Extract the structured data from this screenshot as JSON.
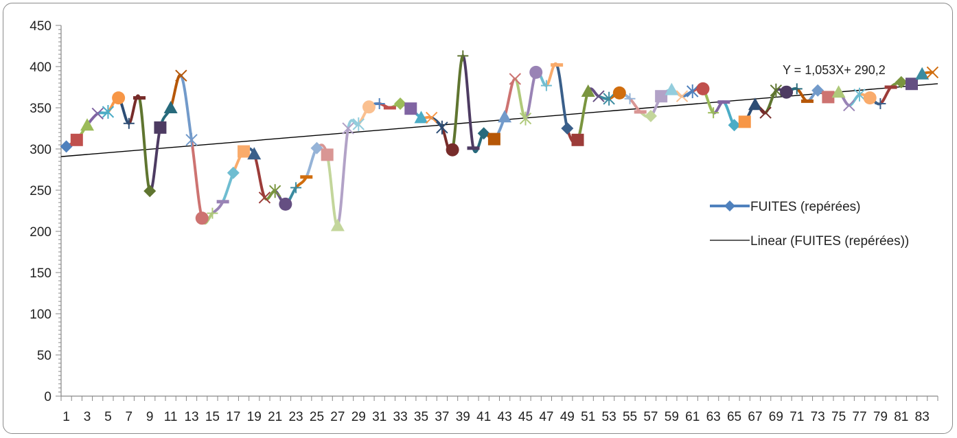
{
  "chart_data": {
    "type": "line",
    "x": [
      1,
      2,
      3,
      4,
      5,
      6,
      7,
      8,
      9,
      10,
      11,
      12,
      13,
      14,
      15,
      16,
      17,
      18,
      19,
      20,
      21,
      22,
      23,
      24,
      25,
      26,
      27,
      28,
      29,
      30,
      31,
      32,
      33,
      34,
      35,
      36,
      37,
      38,
      39,
      40,
      41,
      42,
      43,
      44,
      45,
      46,
      47,
      48,
      49,
      50,
      51,
      52,
      53,
      54,
      55,
      56,
      57,
      58,
      59,
      60,
      61,
      62,
      63,
      64,
      65,
      66,
      67,
      68,
      69,
      70,
      71,
      72,
      73,
      74,
      75,
      76,
      77,
      78,
      79,
      80,
      81,
      82,
      83,
      84
    ],
    "x_tick_labels": [
      "1",
      "3",
      "5",
      "7",
      "9",
      "11",
      "13",
      "15",
      "17",
      "19",
      "21",
      "23",
      "25",
      "27",
      "29",
      "31",
      "33",
      "35",
      "37",
      "39",
      "41",
      "43",
      "45",
      "47",
      "49",
      "51",
      "53",
      "55",
      "57",
      "59",
      "61",
      "63",
      "65",
      "67",
      "69",
      "71",
      "73",
      "75",
      "77",
      "79",
      "81",
      "83"
    ],
    "series": [
      {
        "name": "FUITES (repérées)",
        "values": [
          303,
          311,
          329,
          343,
          345,
          362,
          331,
          362,
          249,
          326,
          350,
          389,
          311,
          216,
          222,
          236,
          271,
          297,
          294,
          241,
          249,
          233,
          253,
          266,
          301,
          293,
          207,
          325,
          330,
          351,
          355,
          350,
          355,
          349,
          338,
          338,
          326,
          299,
          413,
          301,
          319,
          312,
          339,
          385,
          337,
          393,
          377,
          402,
          325,
          311,
          370,
          364,
          361,
          368,
          361,
          345,
          340,
          364,
          372,
          364,
          370,
          373,
          344,
          357,
          329,
          333,
          354,
          344,
          371,
          369,
          373,
          358,
          371,
          363,
          369,
          353,
          366,
          362,
          355,
          375,
          381,
          379,
          391,
          393
        ]
      }
    ],
    "trendline": {
      "name": "Linear (FUITES (repérées))",
      "slope": 1.053,
      "intercept": 290.2,
      "equation_label": "Y = 1,053X+ 290,2"
    },
    "ylim": [
      0,
      450
    ],
    "y_ticks": [
      0,
      50,
      100,
      150,
      200,
      250,
      300,
      350,
      400,
      450
    ],
    "legend_position": "right",
    "grid": false,
    "title": "",
    "xlabel": "",
    "ylabel": "",
    "colors": {
      "series_line": "#4f81bd",
      "trendline": "#000000",
      "axis": "#868686"
    },
    "segment_palette": [
      "#4f81bd",
      "#c0504d",
      "#9bbb59",
      "#8064a2",
      "#4bacc6",
      "#f79646",
      "#2c4d75",
      "#772c2a",
      "#5f7530",
      "#4d3b62",
      "#276a7c",
      "#b65708",
      "#729aca",
      "#cd7371",
      "#afc97a",
      "#9983b5",
      "#6fbdd1",
      "#f9ab6b",
      "#3a5f8a",
      "#9c3c39",
      "#7a953f",
      "#654f82",
      "#3b8ba0",
      "#d06d0e",
      "#95b3d7",
      "#d99694",
      "#c3d69b",
      "#b2a2c7",
      "#93cddd",
      "#fac090"
    ]
  }
}
